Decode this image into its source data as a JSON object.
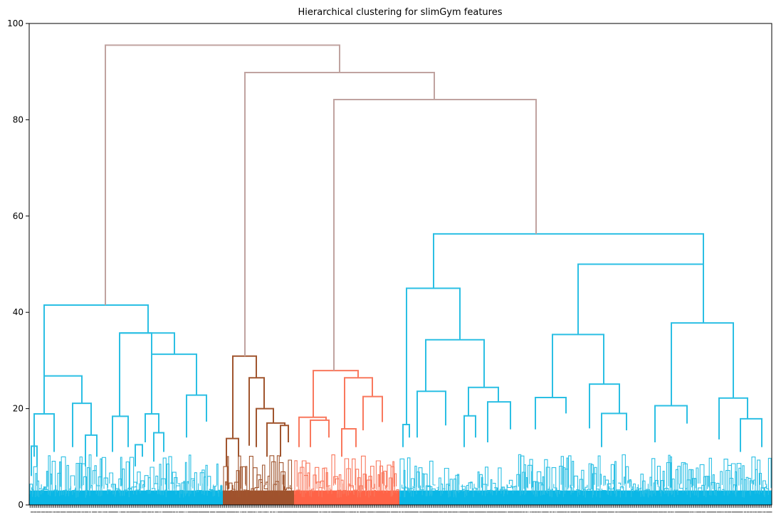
{
  "chart_data": {
    "type": "dendrogram",
    "title": "Hierarchical clustering for slimGym features",
    "xlabel": "",
    "ylabel": "",
    "ylim": [
      0,
      100
    ],
    "yticks": [
      0,
      20,
      40,
      60,
      80,
      100
    ],
    "grid": false,
    "legend": "none",
    "colors": {
      "above_threshold": "#c0a3a0",
      "cluster_1": "#2bbfe4",
      "cluster_2": "#a0552e",
      "cluster_3": "#f9785d",
      "cluster_4": "#2bbfe4",
      "leaf_fill_1": "#0ab7e6",
      "leaf_fill_2": "#a0522d",
      "leaf_fill_3": "#ff6347",
      "leaf_fill_4": "#0ab7e6"
    },
    "clusters": [
      {
        "id": "cluster_1",
        "merge_height": 41.5,
        "sub_merge_heights": [
          26.8,
          35.7,
          31.3,
          21.1,
          18.9,
          22.8,
          18.4,
          18.9,
          17.3,
          14.5,
          13.9,
          12.5,
          15.0,
          13.1,
          12.2
        ]
      },
      {
        "id": "cluster_2",
        "merge_height": 30.9,
        "sub_merge_heights": [
          26.4,
          20.0,
          17.0,
          16.5,
          13.8,
          12.3
        ]
      },
      {
        "id": "cluster_3",
        "merge_height": 27.9,
        "sub_merge_heights": [
          26.4,
          22.5,
          18.2,
          17.6,
          17.2,
          15.8
        ]
      },
      {
        "id": "cluster_4",
        "merge_height": 56.3,
        "sub_merge_heights": [
          45.0,
          50.0,
          34.3,
          35.4,
          37.8,
          24.4,
          23.6,
          25.1,
          22.3,
          22.2,
          21.4,
          20.6,
          18.5,
          17.9,
          19.0,
          16.7,
          16.5
        ]
      }
    ],
    "top_links": [
      {
        "height": 84.2,
        "joins": [
          "cluster_3",
          "cluster_4"
        ]
      },
      {
        "height": 89.8,
        "joins": [
          "cluster_2",
          "cluster_3+cluster_4"
        ]
      },
      {
        "height": 95.5,
        "joins": [
          "cluster_1",
          "cluster_2+cluster_3+cluster_4"
        ]
      }
    ]
  }
}
